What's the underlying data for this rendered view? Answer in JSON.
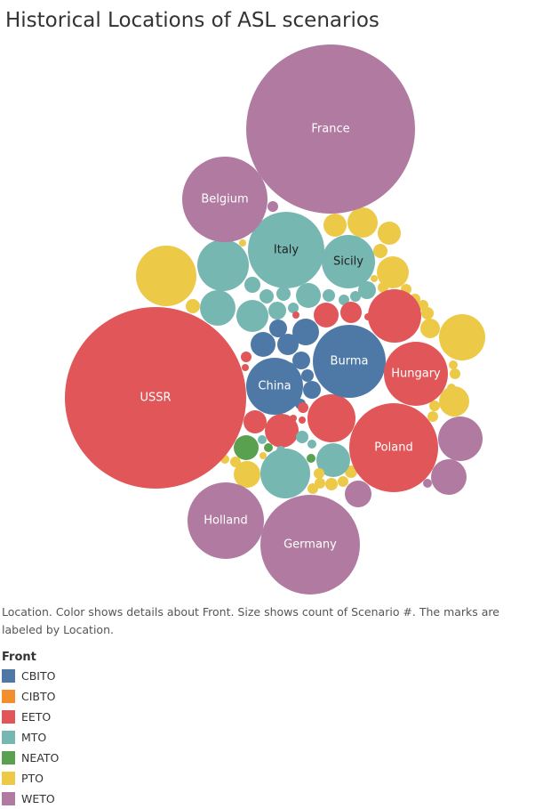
{
  "title": "Historical Locations of ASL scenarios",
  "caption": "Location.  Color shows details about Front.  Size shows count of Scenario #.  The marks are labeled by Location.",
  "legend": {
    "title": "Front",
    "items": [
      {
        "label": "CBITO",
        "color": "#4e79a7"
      },
      {
        "label": "CIBTO",
        "color": "#f28e2b"
      },
      {
        "label": "EETO",
        "color": "#e15759"
      },
      {
        "label": "MTO",
        "color": "#76b7b2"
      },
      {
        "label": "NEATO",
        "color": "#59a14f"
      },
      {
        "label": "PTO",
        "color": "#edc948"
      },
      {
        "label": "WETO",
        "color": "#b07aa1"
      }
    ]
  },
  "chart_data": {
    "type": "packed-bubble",
    "size_measure": "count of Scenario #",
    "color_field": "Front",
    "colors": {
      "CBITO": "#4e79a7",
      "CIBTO": "#f28e2b",
      "EETO": "#e15759",
      "MTO": "#76b7b2",
      "NEATO": "#59a14f",
      "PTO": "#edc948",
      "WETO": "#b07aa1"
    },
    "labeled_marks": [
      {
        "label": "France",
        "front": "WETO"
      },
      {
        "label": "USSR",
        "front": "EETO"
      },
      {
        "label": "Germany",
        "front": "WETO"
      },
      {
        "label": "Poland",
        "front": "EETO"
      },
      {
        "label": "Italy",
        "front": "MTO"
      },
      {
        "label": "Belgium",
        "front": "WETO"
      },
      {
        "label": "Holland",
        "front": "WETO"
      },
      {
        "label": "Burma",
        "front": "CBITO"
      },
      {
        "label": "Hungary",
        "front": "EETO"
      },
      {
        "label": "China",
        "front": "CBITO"
      },
      {
        "label": "Sicily",
        "front": "MTO"
      }
    ]
  }
}
